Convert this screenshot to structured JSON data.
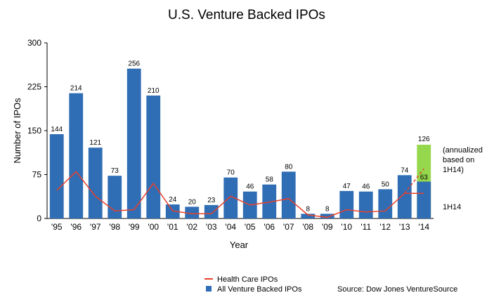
{
  "chart_data": {
    "type": "bar",
    "title": "U.S. Venture Backed IPOs",
    "xlabel": "Year",
    "ylabel": "Number of IPOs",
    "ylim": [
      0,
      300
    ],
    "yticks": [
      "0",
      "75",
      "150",
      "225",
      "300"
    ],
    "ytick_values": [
      0,
      75,
      150,
      225,
      300
    ],
    "categories": [
      "'95",
      "'96",
      "'97",
      "'98",
      "'99",
      "'00",
      "'01",
      "'02",
      "'03",
      "'04",
      "'05",
      "'06",
      "'07",
      "'08",
      "'09",
      "'10",
      "'11",
      "'12",
      "'13",
      "'14"
    ],
    "series": [
      {
        "name": "All Venture Backed IPOs",
        "type": "bar",
        "color": "#2f6db5",
        "values": [
          144,
          214,
          121,
          73,
          256,
          210,
          24,
          20,
          23,
          70,
          46,
          58,
          80,
          8,
          8,
          47,
          46,
          50,
          74,
          63
        ],
        "labels": [
          "144",
          "214",
          "121",
          "73",
          "256",
          "210",
          "24",
          "20",
          "23",
          "70",
          "46",
          "58",
          "80",
          "8",
          "8",
          "47",
          "46",
          "50",
          "74",
          "63"
        ]
      },
      {
        "name": "Health Care IPOs",
        "type": "line",
        "color": "#e8412c",
        "values": [
          48,
          80,
          38,
          13,
          15,
          60,
          13,
          8,
          8,
          38,
          23,
          28,
          34,
          6,
          2,
          15,
          11,
          13,
          43,
          43
        ]
      }
    ],
    "annualized": {
      "category": "'14",
      "total": 126,
      "total_label": "126",
      "color": "#95d84d",
      "health_care_annualized": 85,
      "note_lines": [
        "(annualized",
        "based on",
        "1H14)"
      ],
      "h1_label": "1H14"
    },
    "grid": false,
    "legend_position": "bottom-left",
    "source": "Source: Dow Jones VentureSource"
  }
}
